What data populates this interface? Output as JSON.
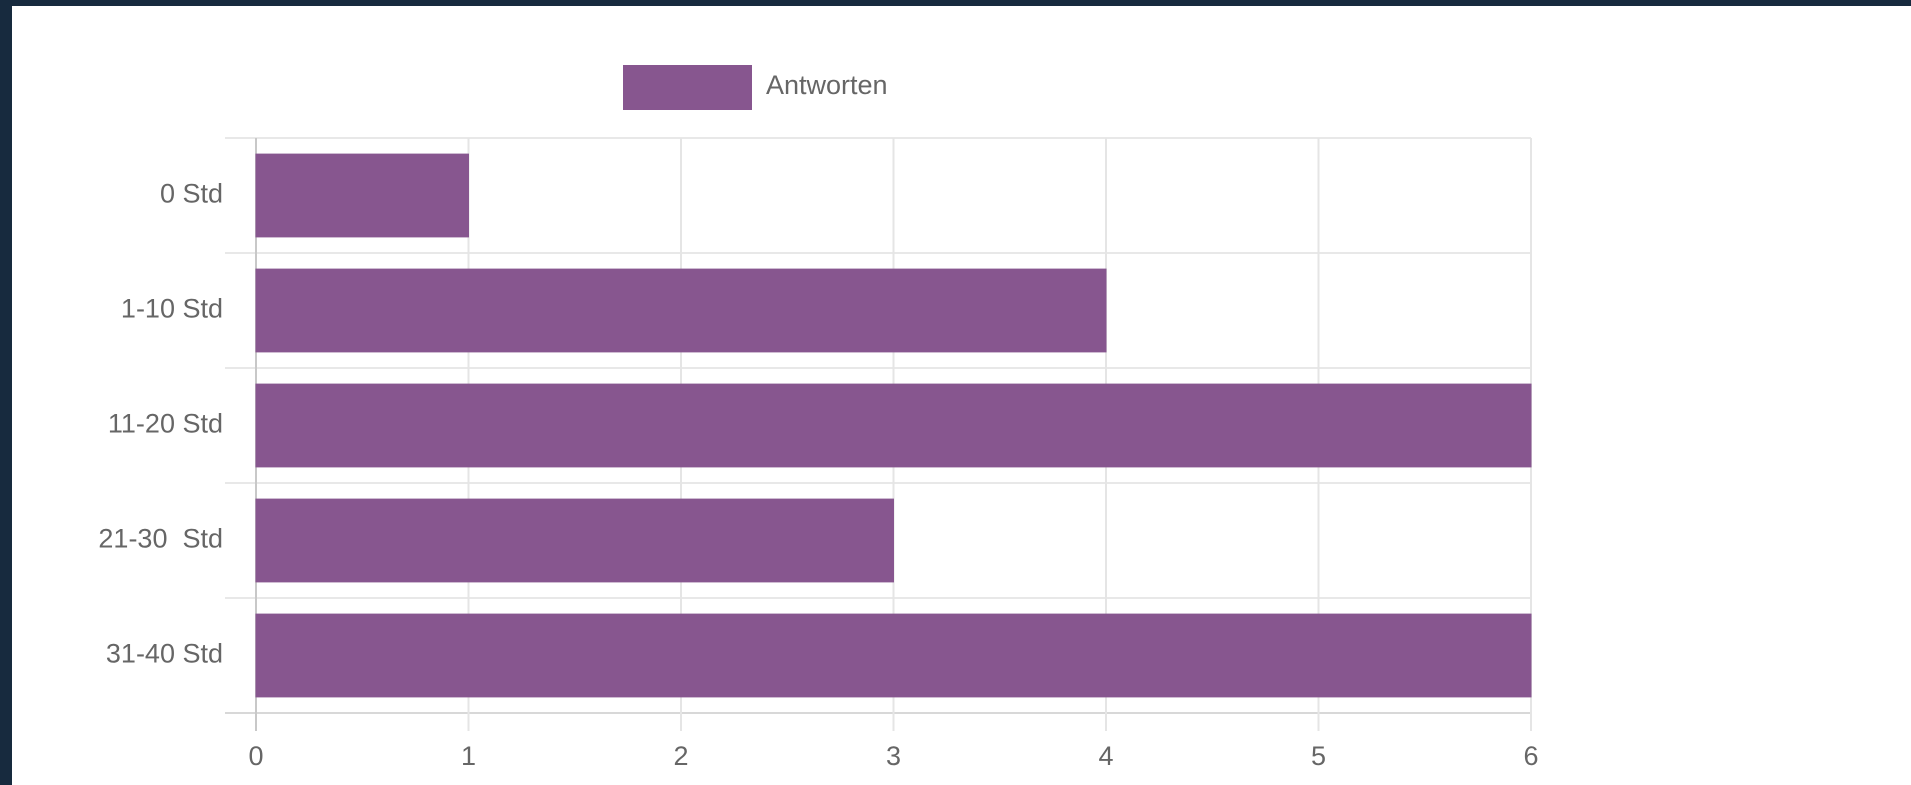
{
  "chart_data": {
    "type": "hbar",
    "categories": [
      "0 Std",
      "1-10 Std",
      "11-20 Std",
      "21-30  Std",
      "31-40 Std"
    ],
    "series": [
      {
        "name": "Antworten",
        "color": "#87568f",
        "values": [
          1,
          4,
          6,
          3,
          6
        ]
      }
    ],
    "xlim": [
      0,
      6
    ],
    "xticks": [
      0,
      1,
      2,
      3,
      4,
      5,
      6
    ],
    "grid": true,
    "legend": "top"
  }
}
